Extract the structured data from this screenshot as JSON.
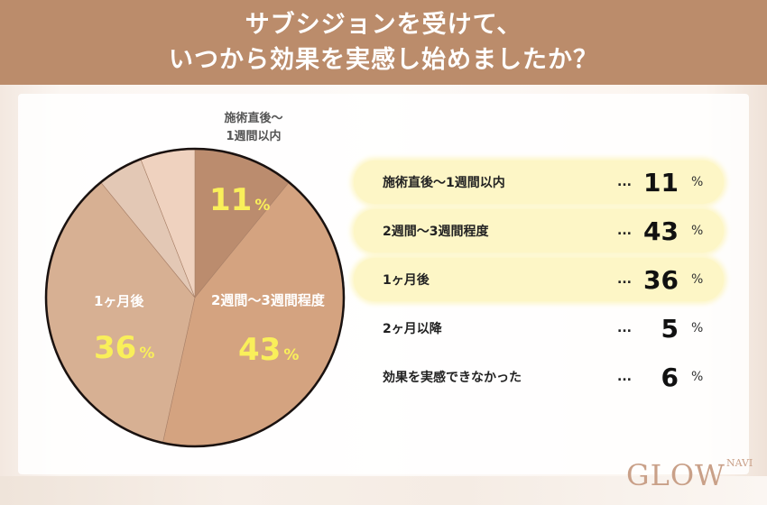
{
  "header": {
    "title_line1": "サブシジョンを受けて、",
    "title_line2": "いつから効果を実感し始めましたか？"
  },
  "chart_data": {
    "type": "pie",
    "title": "サブシジョンを受けて、いつから効果を実感し始めましたか？",
    "start_angle": "12 o'clock",
    "direction": "clockwise",
    "categories": [
      "施術直後〜1週間以内",
      "2週間〜3週間程度",
      "1ヶ月後",
      "2ヶ月以降",
      "効果を実感できなかった"
    ],
    "values": [
      11,
      43,
      36,
      5,
      6
    ],
    "unit": "%",
    "colors": [
      "#bb8c6e",
      "#d4a380",
      "#d7b093",
      "#e3c8b5",
      "#efd2bf"
    ],
    "pie_labels": [
      {
        "name_line1": "施術直後〜",
        "name_line2": "1週間以内",
        "value": "11",
        "pct": "%"
      },
      {
        "name": "2週間〜3週間程度",
        "value": "43",
        "pct": "%"
      },
      {
        "name": "1ヶ月後",
        "value": "36",
        "pct": "%"
      }
    ],
    "legend_position": "right"
  },
  "legend": {
    "rows": [
      {
        "label": "施術直後〜1週間以内",
        "dots": "...",
        "value": "11",
        "pct": "%"
      },
      {
        "label": "2週間〜3週間程度",
        "dots": "...",
        "value": "43",
        "pct": "%"
      },
      {
        "label": "1ヶ月後",
        "dots": "...",
        "value": "36",
        "pct": "%"
      },
      {
        "label": "2ヶ月以降",
        "dots": "...",
        "value": "5",
        "pct": "%"
      },
      {
        "label": "効果を実感できなかった",
        "dots": "...",
        "value": "6",
        "pct": "%"
      }
    ]
  },
  "logo": {
    "main": "GLOW",
    "sub": "NAVI"
  },
  "colors": {
    "header_bg": "#bb8c6b",
    "highlight_bg": "#fdf6c6",
    "pie_value_text": "#f9ef5a"
  }
}
